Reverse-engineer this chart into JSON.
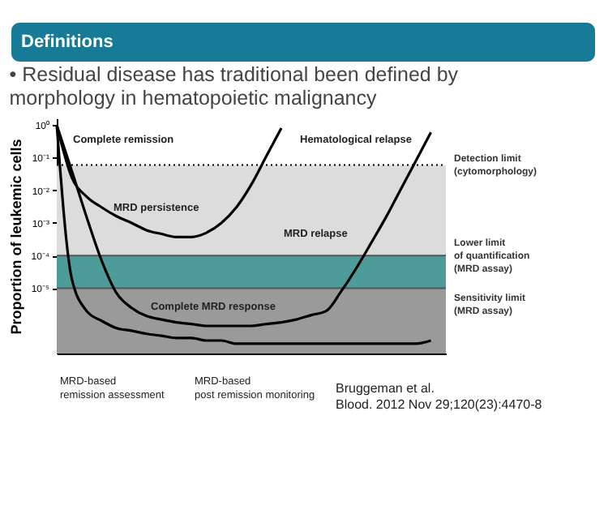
{
  "chart_data": {
    "type": "line",
    "title": "Definitions",
    "subtitle": "• Residual disease has traditional been defined by\n  morphology in hematopoietic malignancy",
    "ylabel": "Proportion of leukemic cells",
    "categories": [
      null,
      null,
      null,
      null,
      null,
      null,
      null,
      null,
      null,
      null,
      null,
      null,
      null,
      null,
      null,
      null,
      null,
      null,
      null,
      null,
      null,
      null,
      null,
      null,
      null,
      null,
      null
    ],
    "series": [
      {
        "color": "#000000",
        "values": [
          1,
          0.025,
          0.0064,
          0.003,
          0.0016,
          0.001,
          0.0006,
          0.00046,
          0.00037,
          0.00037,
          0.0005,
          0.001,
          0.003,
          0.015,
          0.11,
          0.8,
          null,
          null,
          null,
          null,
          null,
          null,
          null,
          null,
          null,
          null,
          null
        ]
      },
      {
        "color": "#000000",
        "values": [
          1,
          2e-05,
          2e-06,
          1e-06,
          6e-07,
          5e-07,
          4e-07,
          3.5e-07,
          3e-07,
          3e-07,
          2.5e-07,
          2.5e-07,
          2e-07,
          2e-07,
          2e-07,
          2e-07,
          2e-07,
          2e-07,
          2e-07,
          2e-07,
          2e-07,
          2e-07,
          2e-07,
          2e-07,
          2e-07,
          2.5e-07,
          null
        ]
      },
      {
        "color": "#000000",
        "values": [
          1,
          0.04,
          0.0015,
          7e-05,
          7e-06,
          2.5e-06,
          1.4e-06,
          1.1e-06,
          9e-07,
          8e-07,
          7e-07,
          7e-07,
          7e-07,
          7e-07,
          8e-07,
          9e-07,
          1.1e-06,
          1.5e-06,
          2e-06,
          8e-06,
          4e-05,
          0.00024,
          0.0015,
          0.011,
          0.08,
          0.6,
          null
        ]
      }
    ],
    "log": "y",
    "ylim": [
      1e-07,
      1.6
    ],
    "yticks": [
      {
        "value": 1,
        "label": "10⁰"
      },
      {
        "value": 0.1,
        "label": "10⁻¹"
      },
      {
        "value": 0.01,
        "label": "10⁻²"
      },
      {
        "value": 0.001,
        "label": "10⁻³"
      },
      {
        "value": 0.0001,
        "label": "10⁻⁴"
      },
      {
        "value": 1e-05,
        "label": "10⁻⁵"
      }
    ],
    "tick_labels": "y",
    "grid": false,
    "marker": "none",
    "line_style": "solid",
    "bands": [
      {
        "axis": "y",
        "from": 0.0001,
        "to": 0.06,
        "color": "#dcdcdc"
      },
      {
        "axis": "y",
        "from": 1e-05,
        "to": 0.0001,
        "color": "#4d9c9a"
      },
      {
        "axis": "y",
        "from": 1e-07,
        "to": 1e-05,
        "color": "#9a9a9a"
      }
    ],
    "ref_lines": [
      {
        "axis": "y",
        "value": 0.06,
        "label": "Detection limit\n(cytomorphology)",
        "line_style": "dotted",
        "color": "#000000"
      },
      {
        "axis": "y",
        "value": 0.0001,
        "label": "Lower limit\nof quantification\n(MRD assay)",
        "color": "#555555"
      },
      {
        "axis": "y",
        "value": 1e-05,
        "label": "Sensitivity limit\n(MRD assay)",
        "color": "#555555"
      }
    ],
    "annotations": [
      "Complete remission",
      "Hematological relapse",
      "MRD persistence",
      "MRD relapse",
      "Complete MRD response",
      "MRD-based\nremission assessment",
      "MRD-based\npost remission monitoring",
      "Bruggeman et al.\nBlood. 2012 Nov 29;120(23):4470-8"
    ]
  }
}
